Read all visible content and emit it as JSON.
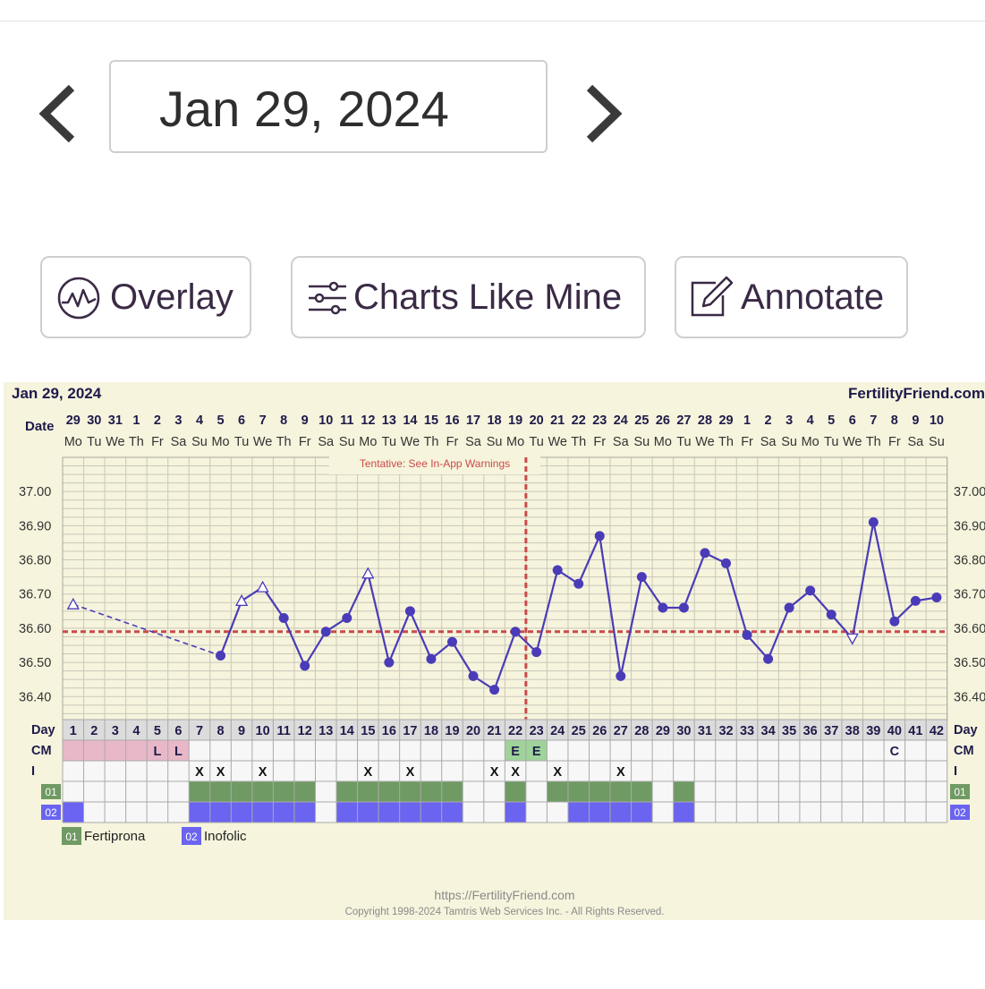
{
  "nav": {
    "date": "Jan 29, 2024",
    "prev_icon": "chevron-left-icon",
    "next_icon": "chevron-right-icon"
  },
  "toolbar": {
    "overlay_label": "Overlay",
    "charts_like_mine_label": "Charts Like Mine",
    "annotate_label": "Annotate"
  },
  "colors": {
    "chart_bg": "#f6f4dd",
    "line": "#4a3bb8",
    "coverline": "#c94a4a",
    "cm_pink": "#e8b8c8",
    "cm_green": "#9fd39a",
    "med1": "#6f9a63",
    "med2": "#6a64f0"
  },
  "chart_data": {
    "type": "line",
    "title": "Jan 29, 2024",
    "brand": "FertilityFriend.com",
    "date_label": "Date",
    "day_label": "Day",
    "cm_label": "CM",
    "i_label": "I",
    "dates": [
      "29",
      "30",
      "31",
      "1",
      "2",
      "3",
      "4",
      "5",
      "6",
      "7",
      "8",
      "9",
      "10",
      "11",
      "12",
      "13",
      "14",
      "15",
      "16",
      "17",
      "18",
      "19",
      "20",
      "21",
      "22",
      "23",
      "24",
      "25",
      "26",
      "27",
      "28",
      "29",
      "1",
      "2",
      "3",
      "4",
      "5",
      "6",
      "7",
      "8",
      "9",
      "10"
    ],
    "weekdays": [
      "Mo",
      "Tu",
      "We",
      "Th",
      "Fr",
      "Sa",
      "Su",
      "Mo",
      "Tu",
      "We",
      "Th",
      "Fr",
      "Sa",
      "Su",
      "Mo",
      "Tu",
      "We",
      "Th",
      "Fr",
      "Sa",
      "Su",
      "Mo",
      "Tu",
      "We",
      "Th",
      "Fr",
      "Sa",
      "Su",
      "Mo",
      "Tu",
      "We",
      "Th",
      "Fr",
      "Sa",
      "Su",
      "Mo",
      "Tu",
      "We",
      "Th",
      "Fr",
      "Sa",
      "Su"
    ],
    "days": [
      1,
      2,
      3,
      4,
      5,
      6,
      7,
      8,
      9,
      10,
      11,
      12,
      13,
      14,
      15,
      16,
      17,
      18,
      19,
      20,
      21,
      22,
      23,
      24,
      25,
      26,
      27,
      28,
      29,
      30,
      31,
      32,
      33,
      34,
      35,
      36,
      37,
      38,
      39,
      40,
      41,
      42
    ],
    "y_ticks": [
      "37.00",
      "36.90",
      "36.80",
      "36.70",
      "36.60",
      "36.50",
      "36.40"
    ],
    "ylim": [
      36.33,
      37.1
    ],
    "coverline": 36.59,
    "ovulation_day": 23,
    "tentative_note": "Tentative: See In-App Warnings",
    "temps": [
      {
        "day": 1,
        "temp": 36.67,
        "open": true
      },
      {
        "day": 8,
        "temp": 36.52
      },
      {
        "day": 9,
        "temp": 36.68,
        "open": true
      },
      {
        "day": 10,
        "temp": 36.72,
        "open": true
      },
      {
        "day": 11,
        "temp": 36.63
      },
      {
        "day": 12,
        "temp": 36.49
      },
      {
        "day": 13,
        "temp": 36.59
      },
      {
        "day": 14,
        "temp": 36.63
      },
      {
        "day": 15,
        "temp": 36.76,
        "open": true
      },
      {
        "day": 16,
        "temp": 36.5
      },
      {
        "day": 17,
        "temp": 36.65
      },
      {
        "day": 18,
        "temp": 36.51
      },
      {
        "day": 19,
        "temp": 36.56
      },
      {
        "day": 20,
        "temp": 36.46
      },
      {
        "day": 21,
        "temp": 36.42
      },
      {
        "day": 22,
        "temp": 36.59
      },
      {
        "day": 23,
        "temp": 36.53
      },
      {
        "day": 24,
        "temp": 36.77
      },
      {
        "day": 25,
        "temp": 36.73
      },
      {
        "day": 26,
        "temp": 36.87
      },
      {
        "day": 27,
        "temp": 36.46
      },
      {
        "day": 28,
        "temp": 36.75
      },
      {
        "day": 29,
        "temp": 36.66
      },
      {
        "day": 30,
        "temp": 36.66
      },
      {
        "day": 31,
        "temp": 36.82
      },
      {
        "day": 32,
        "temp": 36.79
      },
      {
        "day": 33,
        "temp": 36.58
      },
      {
        "day": 34,
        "temp": 36.51
      },
      {
        "day": 35,
        "temp": 36.66
      },
      {
        "day": 36,
        "temp": 36.71
      },
      {
        "day": 37,
        "temp": 36.64
      },
      {
        "day": 38,
        "temp": 36.57,
        "open": true,
        "down": true
      },
      {
        "day": 39,
        "temp": 36.91
      },
      {
        "day": 40,
        "temp": 36.62
      },
      {
        "day": 41,
        "temp": 36.68
      },
      {
        "day": 42,
        "temp": 36.69
      }
    ],
    "cm": [
      {
        "day": 1,
        "type": "pink",
        "text": ""
      },
      {
        "day": 2,
        "type": "pink",
        "text": ""
      },
      {
        "day": 3,
        "type": "pink",
        "text": ""
      },
      {
        "day": 4,
        "type": "pink",
        "text": ""
      },
      {
        "day": 5,
        "type": "pink",
        "text": "L"
      },
      {
        "day": 6,
        "type": "pink",
        "text": "L"
      },
      {
        "day": 22,
        "type": "green",
        "text": "E"
      },
      {
        "day": 23,
        "type": "green",
        "text": "E"
      },
      {
        "day": 40,
        "type": "none",
        "text": "C"
      }
    ],
    "intercourse_mark": "X",
    "intercourse_days": [
      7,
      8,
      10,
      15,
      17,
      21,
      22,
      24,
      27
    ],
    "med1_code": "01",
    "med2_code": "02",
    "med1_days": [
      7,
      8,
      9,
      10,
      11,
      12,
      14,
      15,
      16,
      17,
      18,
      19,
      22,
      24,
      25,
      26,
      27,
      28,
      30
    ],
    "med2_days": [
      1,
      7,
      8,
      9,
      10,
      11,
      12,
      14,
      15,
      16,
      17,
      18,
      19,
      22,
      25,
      26,
      27,
      28,
      30
    ],
    "legend": [
      {
        "code": "01",
        "name": "Fertiprona"
      },
      {
        "code": "02",
        "name": "Inofolic"
      }
    ],
    "footer_url": "https://FertilityFriend.com",
    "copyright": "Copyright 1998-2024 Tamtris Web Services Inc. - All Rights Reserved."
  }
}
